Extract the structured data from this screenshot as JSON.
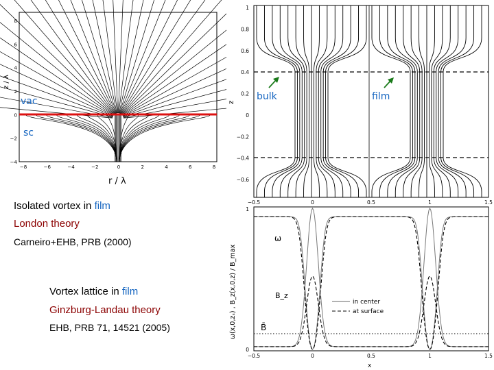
{
  "colors": {
    "blue": "#1565c0",
    "darkred": "#8b0000",
    "interface": "#dd1111",
    "arrow": "#1a7a1a"
  },
  "fig_tl": {
    "y_axis_label": "z / λ",
    "x_axis_label": "r / λ",
    "y_ticks": [
      "8",
      "6",
      "4",
      "2",
      "0",
      "−2",
      "−4"
    ],
    "x_ticks": [
      "−8",
      "−6",
      "−4",
      "−2",
      "0",
      "2",
      "4",
      "6",
      "8"
    ],
    "label_vac": "vac",
    "label_sc": "sc"
  },
  "fig_tr": {
    "y_axis_label": "z",
    "y_ticks": [
      "1",
      "0.8",
      "0.6",
      "0.4",
      "0.2",
      "0",
      "−0.2",
      "−0.4",
      "−0.6"
    ],
    "x_ticks": [
      "−0.5",
      "0",
      "0.5",
      "1",
      "1.5"
    ],
    "label_bulk": "bulk",
    "label_film": "film"
  },
  "fig_br": {
    "y_axis_label": "ω(x,0,zₛ) ,  B_z(x,0,z) / B_max",
    "y_ticks": [
      "1",
      "0"
    ],
    "x_ticks": [
      "−0.5",
      "0",
      "0.5",
      "1",
      "1.5"
    ],
    "x_axis_label": "x",
    "label_omega": "ω",
    "label_bz": "B_z",
    "label_bbar": "B̄",
    "legend": [
      "in center",
      "at surface"
    ]
  },
  "captions": {
    "line1_prefix": "Isolated vortex in ",
    "line1_film": "film",
    "line2": "London theory",
    "line3": "Carneiro+EHB, PRB (2000)",
    "line4_prefix": "Vortex lattice in ",
    "line4_film": "film",
    "line5": "Ginzburg-Landau theory",
    "line6": "EHB, PRB 71, 14521 (2005)"
  }
}
